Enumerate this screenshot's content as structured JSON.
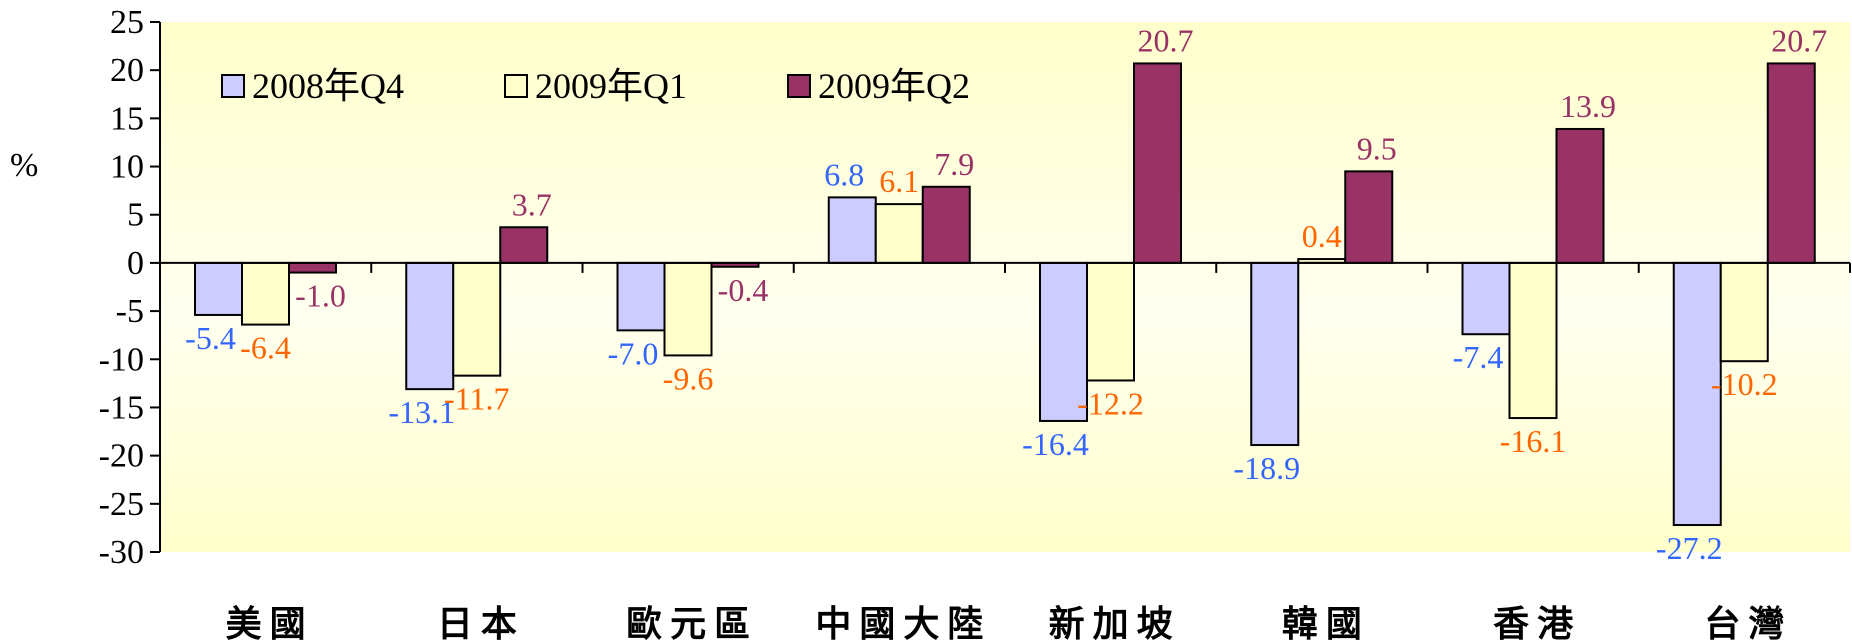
{
  "chart_data": {
    "type": "bar",
    "unit_label": "%",
    "categories": [
      "美國",
      "日本",
      "歐元區",
      "中國大陸",
      "新加坡",
      "韓國",
      "香港",
      "台灣"
    ],
    "series": [
      {
        "name": "2008年Q4",
        "values": [
          -5.4,
          -13.1,
          -7.0,
          6.8,
          -16.4,
          -18.9,
          -7.4,
          -27.2
        ],
        "color": "#ccccff",
        "label_color": "#3366ff"
      },
      {
        "name": "2009年Q1",
        "values": [
          -6.4,
          -11.7,
          -9.6,
          6.1,
          -12.2,
          0.4,
          -16.1,
          -10.2
        ],
        "color": "#ffffcc",
        "label_color": "#ff6600"
      },
      {
        "name": "2009年Q2",
        "values": [
          -1.0,
          3.7,
          -0.4,
          7.9,
          20.7,
          9.5,
          13.9,
          20.7
        ],
        "color": "#993366",
        "label_color": "#993366"
      }
    ],
    "ylim": [
      -30,
      25
    ],
    "y_ticks": [
      25,
      20,
      15,
      10,
      5,
      0,
      -5,
      -10,
      -15,
      -20,
      -25,
      -30
    ],
    "legend_position": "top-left",
    "plot_background": "#ffffcc"
  }
}
